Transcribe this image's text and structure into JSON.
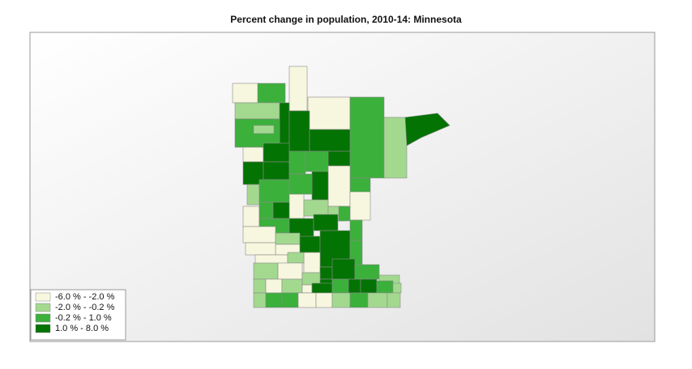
{
  "title": "Percent change in population, 2010-14: Minnesota",
  "legend": [
    {
      "label": "-6.0 % - -2.0 %",
      "color": "#f7f7df"
    },
    {
      "label": "-2.0 % - -0.2 %",
      "color": "#a3d98f"
    },
    {
      "label": "-0.2 % - 1.0 %",
      "color": "#3bb03b"
    },
    {
      "label": "1.0 % - 8.0 %",
      "color": "#037303"
    }
  ]
}
